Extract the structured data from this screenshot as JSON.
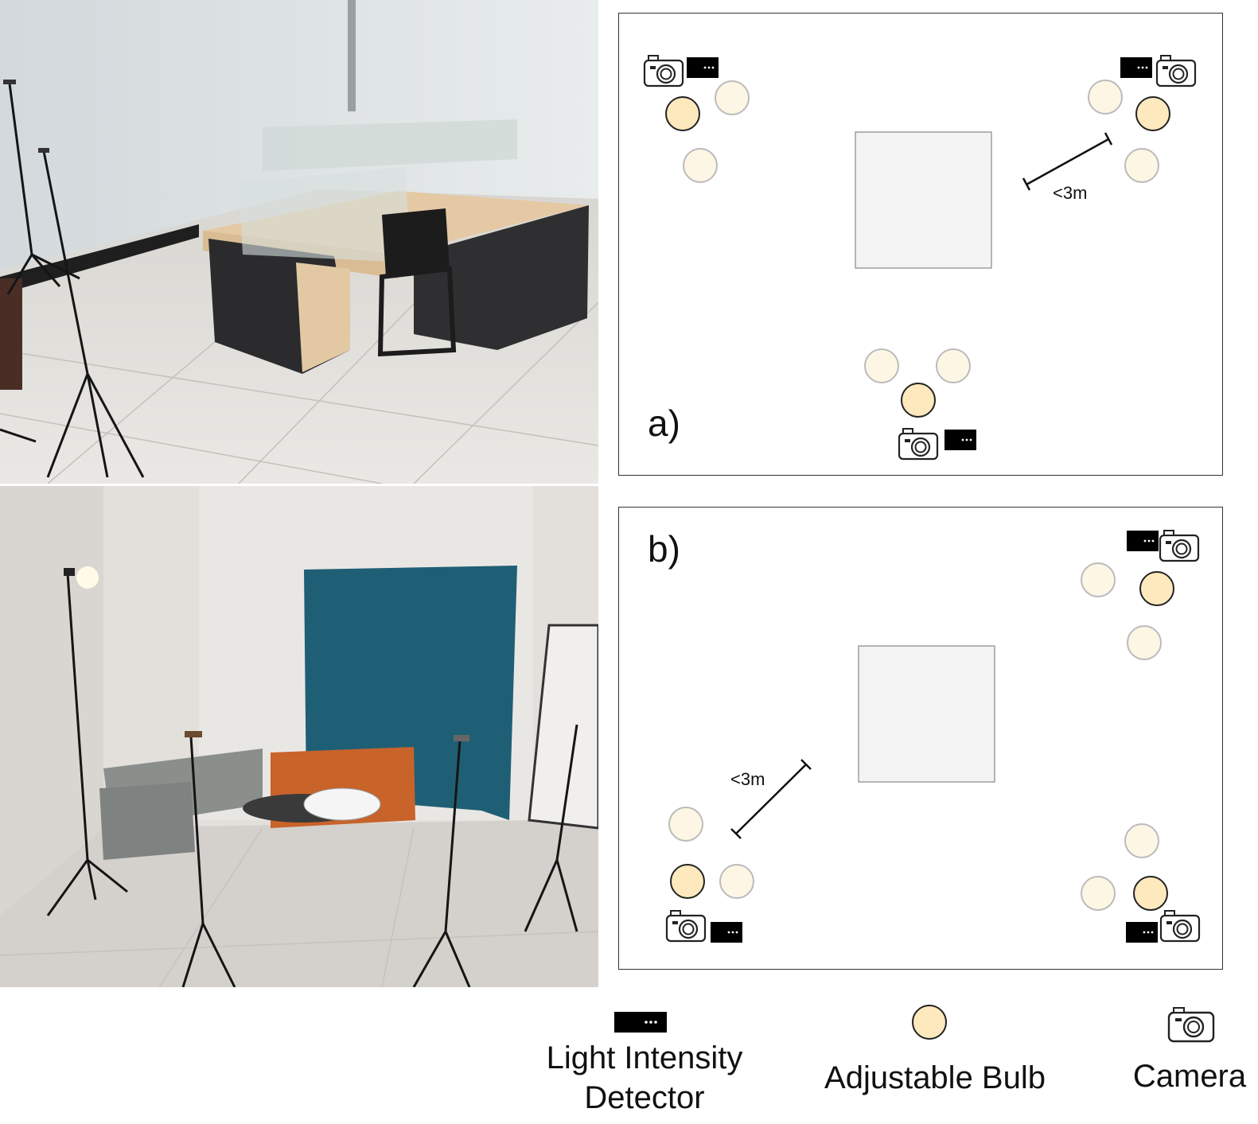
{
  "panels": {
    "a": {
      "label": "a)",
      "distance": "<3m"
    },
    "b": {
      "label": "b)",
      "distance": "<3m"
    }
  },
  "legend": {
    "detector_line1": "Light Intensity",
    "detector_line2": "Detector",
    "bulb": "Adjustable Bulb",
    "camera": "Camera"
  },
  "colors": {
    "bulb_bright": "#fde9bd",
    "bulb_dim": "#fdf6e4",
    "table": "#f3f3f3",
    "detector": "#000000"
  },
  "icons": [
    "camera-icon",
    "light-intensity-detector-icon",
    "adjustable-bulb-icon"
  ]
}
